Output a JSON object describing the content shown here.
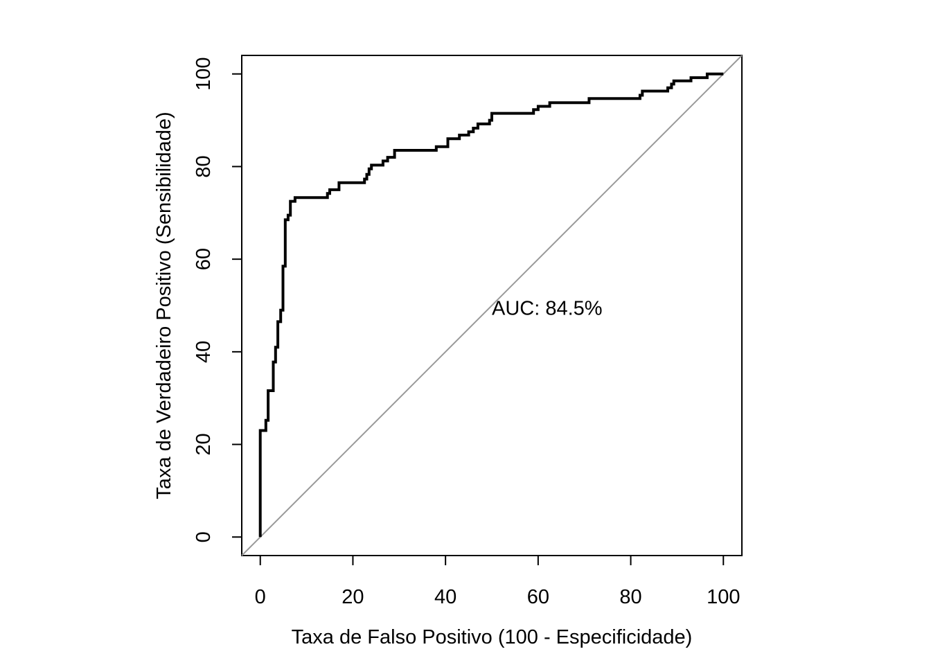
{
  "chart_data": {
    "type": "line",
    "title": "",
    "xlabel": "Taxa de Falso Positivo (100 - Especificidade)",
    "ylabel": "Taxa de Verdadeiro Positivo (Sensibilidade)",
    "xlim": [
      -4,
      104
    ],
    "ylim": [
      -4,
      104
    ],
    "x_ticks": [
      0,
      20,
      40,
      60,
      80,
      100
    ],
    "y_ticks": [
      0,
      20,
      40,
      60,
      80,
      100
    ],
    "x_tick_labels": [
      "0",
      "20",
      "40",
      "60",
      "80",
      "100"
    ],
    "y_tick_labels": [
      "0",
      "20",
      "40",
      "60",
      "80",
      "100"
    ],
    "grid": false,
    "annotation": {
      "text": "AUC: 84.5%",
      "x": 50,
      "y": 48
    },
    "reference_line": {
      "from": [
        -4,
        -4
      ],
      "to": [
        104,
        104
      ],
      "color": "#999999"
    },
    "series": [
      {
        "color": "#000000",
        "x": [
          0,
          0,
          1.2,
          1.2,
          1.7,
          1.7,
          2.8,
          2.8,
          3.3,
          3.3,
          3.8,
          3.8,
          4.4,
          4.4,
          4.9,
          4.9,
          5.4,
          5.4,
          6.0,
          6.0,
          6.5,
          6.5,
          7.5,
          7.5,
          14.5,
          14.5,
          15.0,
          15.0,
          17.0,
          17.0,
          22.5,
          22.5,
          23.0,
          23.0,
          23.5,
          23.5,
          24.0,
          24.0,
          26.5,
          26.5,
          27.5,
          27.5,
          29.0,
          29.0,
          38.0,
          38.0,
          40.5,
          40.5,
          43.0,
          43.0,
          45.0,
          45.0,
          46.0,
          46.0,
          47.0,
          47.0,
          49.5,
          49.5,
          50.0,
          50.0,
          59.0,
          59.0,
          60.0,
          60.0,
          62.5,
          62.5,
          71.0,
          71.0,
          82.0,
          82.0,
          82.5,
          82.5,
          88.0,
          88.0,
          88.8,
          88.8,
          89.3,
          89.3,
          93.0,
          93.0,
          96.5,
          96.5,
          97.0,
          97.0,
          100
        ],
        "y": [
          0,
          23.0,
          23.0,
          25.2,
          25.2,
          31.6,
          31.6,
          37.8,
          37.8,
          41.0,
          41.0,
          46.5,
          46.5,
          49.0,
          49.0,
          58.5,
          58.5,
          68.5,
          68.5,
          69.5,
          69.5,
          72.5,
          72.5,
          73.3,
          73.3,
          74.2,
          74.2,
          75.0,
          75.0,
          76.5,
          76.5,
          77.3,
          77.3,
          78.3,
          78.3,
          79.5,
          79.5,
          80.3,
          80.3,
          81.2,
          81.2,
          82.0,
          82.0,
          83.5,
          83.5,
          84.3,
          84.3,
          86.0,
          86.0,
          86.8,
          86.8,
          87.5,
          87.5,
          88.3,
          88.3,
          89.2,
          89.2,
          90.0,
          90.0,
          91.5,
          91.5,
          92.3,
          92.3,
          93.0,
          93.0,
          93.8,
          93.8,
          94.7,
          94.7,
          95.4,
          95.4,
          96.3,
          96.3,
          97.0,
          97.0,
          97.8,
          97.8,
          98.5,
          98.5,
          99.2,
          99.2,
          100,
          100,
          100,
          100
        ]
      }
    ]
  }
}
